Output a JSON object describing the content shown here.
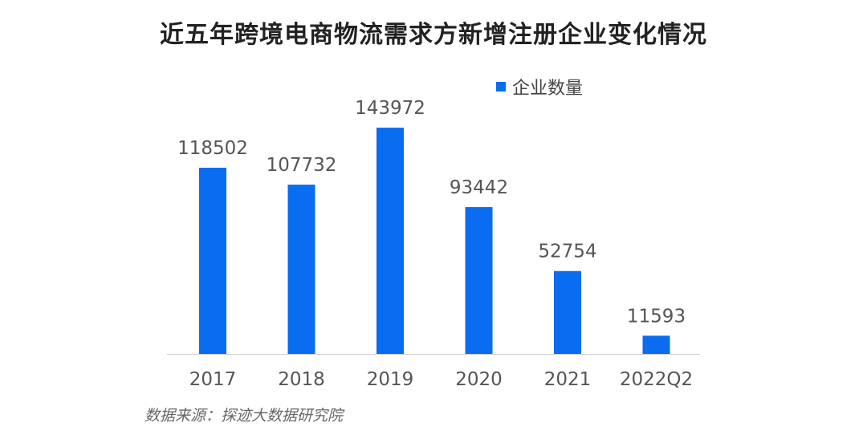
{
  "chart_data": {
    "type": "bar",
    "title": "近五年跨境电商物流需求方新增注册企业变化情况",
    "categories": [
      "2017",
      "2018",
      "2019",
      "2020",
      "2021",
      "2022Q2"
    ],
    "series": [
      {
        "name": "企业数量",
        "values": [
          118502,
          107732,
          143972,
          93442,
          52754,
          11593
        ]
      }
    ],
    "data_labels": [
      "118502",
      "107732",
      "143972",
      "93442",
      "52754",
      "11593"
    ],
    "ylim": [
      0,
      160000
    ],
    "grid": false,
    "legend_position": "top-right",
    "bar_color": "#0a6cf0"
  },
  "source": "数据来源：探迹大数据研究院"
}
